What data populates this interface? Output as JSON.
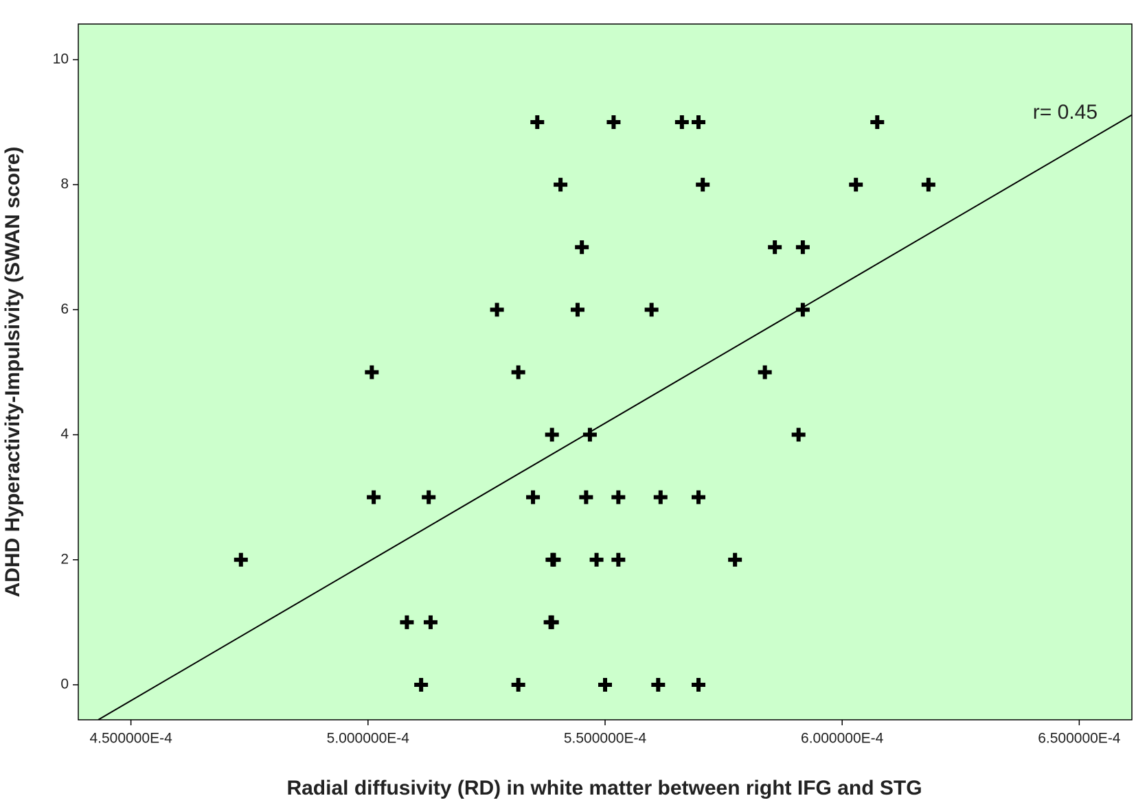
{
  "chart_data": {
    "type": "scatter",
    "x_label": "Radial diffusivity (RD) in white matter between right IFG and STG",
    "y_label": "ADHD Hyperactivity-Impulsivity (SWAN score)",
    "annotation": "r= 0.45",
    "background": "#ccffcc",
    "color": "#000000",
    "x": [
      0.0005357,
      0.0005518,
      0.0005662,
      0.0005697,
      0.0006074,
      0.0005406,
      0.0005706,
      0.0006029,
      0.0006182,
      0.0005451,
      0.0005858,
      0.0005917,
      0.0005272,
      0.0005442,
      0.0005598,
      0.0005917,
      0.0005008,
      0.0005317,
      0.0005837,
      0.0005388,
      0.0005468,
      0.0005908,
      0.0005012,
      0.0005128,
      0.0005348,
      0.000546,
      0.0005528,
      0.0005617,
      0.0005697,
      0.0004732,
      0.0005389,
      0.0005392,
      0.0005482,
      0.0005528,
      0.0005774,
      0.0005082,
      0.0005132,
      0.0005385,
      0.0005388,
      0.0005112,
      0.0005317,
      0.00055,
      0.0005612,
      0.0005697
    ],
    "values": [
      9,
      9,
      9,
      9,
      9,
      8,
      8,
      8,
      8,
      7,
      7,
      7,
      6,
      6,
      6,
      6,
      5,
      5,
      5,
      4,
      4,
      4,
      3,
      3,
      3,
      3,
      3,
      3,
      3,
      2,
      2,
      2,
      2,
      2,
      2,
      1,
      1,
      1,
      1,
      0,
      0,
      0,
      0,
      0
    ],
    "fit_line": {
      "x": [
        0.0004431,
        0.0006611
      ],
      "values": [
        -0.56,
        9.116
      ]
    },
    "xlim": [
      0.0004389,
      0.0006611
    ],
    "ylim": [
      -0.56,
      10.57
    ],
    "xticks": [
      {
        "value": 0.00045,
        "label": "4.500000E-4"
      },
      {
        "value": 0.0005,
        "label": "5.000000E-4"
      },
      {
        "value": 0.00055,
        "label": "5.500000E-4"
      },
      {
        "value": 0.0006,
        "label": "6.000000E-4"
      },
      {
        "value": 0.00065,
        "label": "6.500000E-4"
      }
    ],
    "yticks": [
      0,
      2,
      4,
      6,
      8,
      10
    ]
  }
}
